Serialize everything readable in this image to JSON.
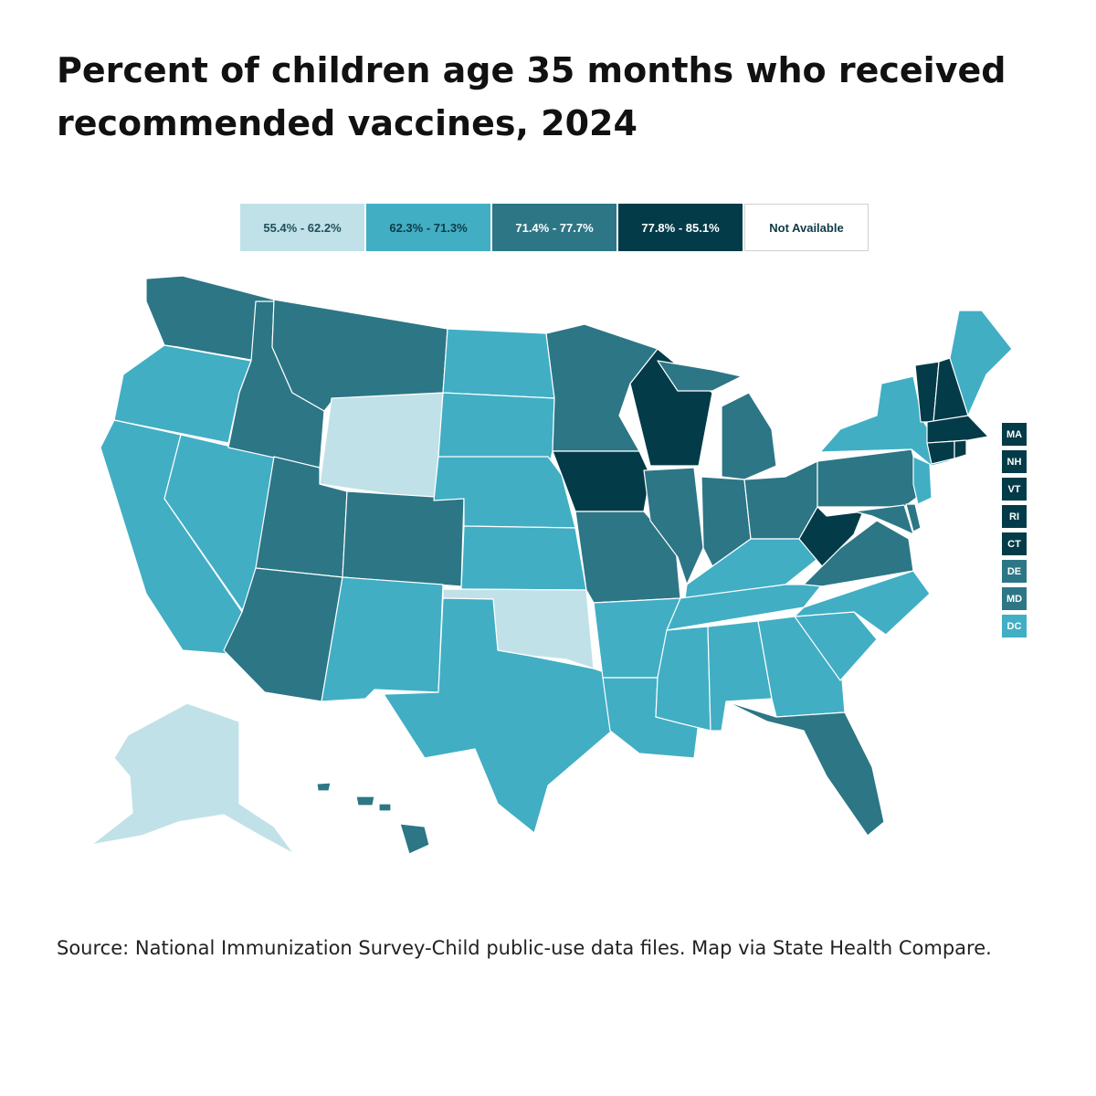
{
  "title": "Percent of children age 35 months who received recommended vaccines, 2024",
  "source": "Source: National Immunization Survey-Child public-use data files. Map via State Health Compare.",
  "legend": [
    {
      "label": "55.4% - 62.2%",
      "color": "#c1e1e8",
      "text_color": "#1f4f5a"
    },
    {
      "label": "62.3% - 71.3%",
      "color": "#41aec4",
      "text_color": "#0d3b45"
    },
    {
      "label": "71.4% - 77.7%",
      "color": "#2c7686",
      "text_color": "#ffffff"
    },
    {
      "label": "77.8% - 85.1%",
      "color": "#043b48",
      "text_color": "#ffffff"
    },
    {
      "label": "Not Available",
      "color": "#ffffff",
      "text_color": "#0d3b45"
    }
  ],
  "small_states": [
    {
      "abbr": "MA",
      "bin": 3
    },
    {
      "abbr": "NH",
      "bin": 3
    },
    {
      "abbr": "VT",
      "bin": 3
    },
    {
      "abbr": "RI",
      "bin": 3
    },
    {
      "abbr": "CT",
      "bin": 3
    },
    {
      "abbr": "DE",
      "bin": 2
    },
    {
      "abbr": "MD",
      "bin": 2
    },
    {
      "abbr": "DC",
      "bin": 1
    }
  ],
  "states": {
    "WA": 2,
    "OR": 1,
    "CA": 1,
    "NV": 1,
    "ID": 2,
    "MT": 2,
    "WY": 0,
    "UT": 2,
    "CO": 2,
    "AZ": 2,
    "NM": 1,
    "ND": 1,
    "SD": 1,
    "NE": 1,
    "KS": 1,
    "OK": 0,
    "TX": 1,
    "MN": 2,
    "IA": 3,
    "MO": 2,
    "AR": 1,
    "LA": 1,
    "WI": 3,
    "IL": 2,
    "MI": 2,
    "IN": 2,
    "OH": 2,
    "KY": 1,
    "TN": 1,
    "MS": 1,
    "AL": 1,
    "GA": 1,
    "FL": 2,
    "SC": 1,
    "NC": 1,
    "VA": 2,
    "WV": 3,
    "PA": 2,
    "NY": 1,
    "NJ": 1,
    "DE": 2,
    "MD": 2,
    "DC": 1,
    "CT": 3,
    "RI": 3,
    "MA": 3,
    "VT": 3,
    "NH": 3,
    "ME": 1,
    "AK": 0,
    "HI": 2
  }
}
